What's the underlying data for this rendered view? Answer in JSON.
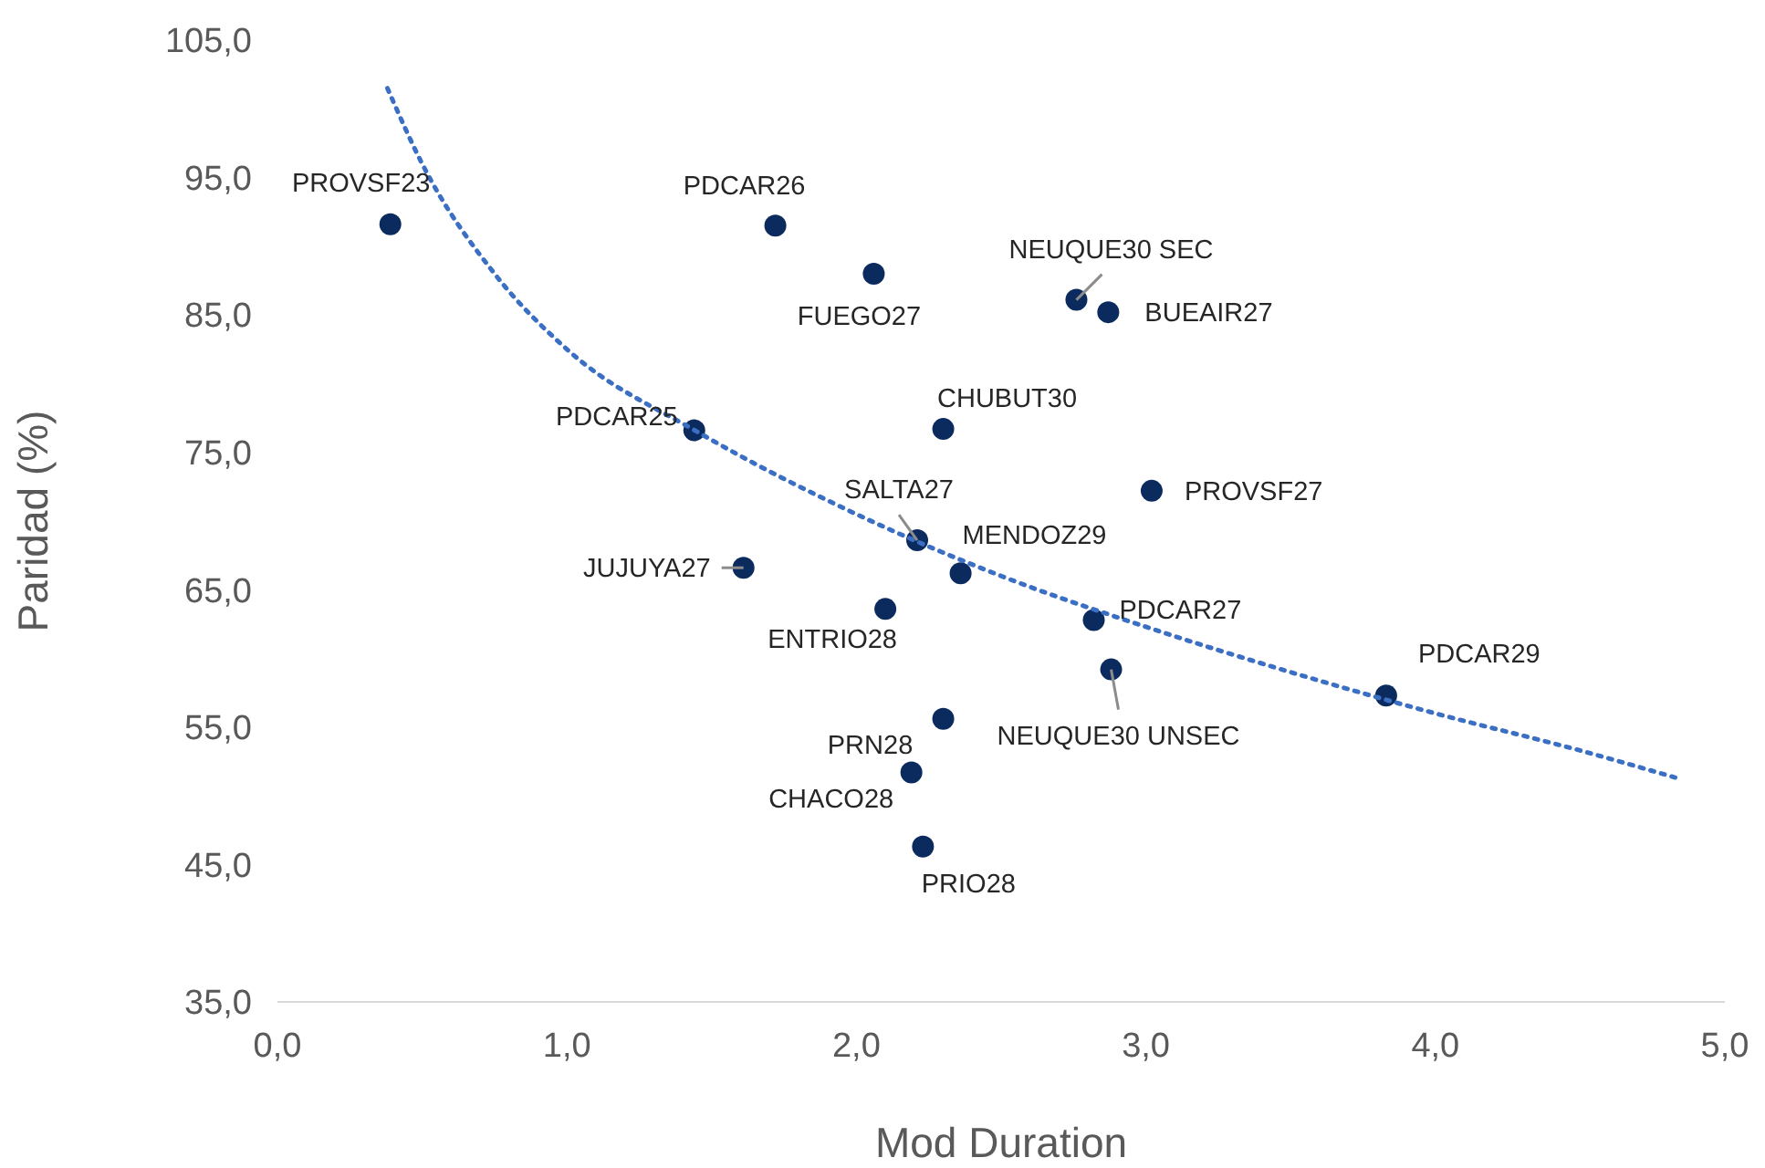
{
  "chart_data": {
    "type": "scatter",
    "xlabel": "Mod Duration",
    "ylabel": "Paridad (%)",
    "xlim": [
      0,
      5
    ],
    "ylim": [
      35,
      105
    ],
    "xticks": [
      {
        "value": 0,
        "label": "0,0"
      },
      {
        "value": 1,
        "label": "1,0"
      },
      {
        "value": 2,
        "label": "2,0"
      },
      {
        "value": 3,
        "label": "3,0"
      },
      {
        "value": 4,
        "label": "4,0"
      },
      {
        "value": 5,
        "label": "5,0"
      }
    ],
    "yticks": [
      {
        "value": 35,
        "label": "35,0"
      },
      {
        "value": 45,
        "label": "45,0"
      },
      {
        "value": 55,
        "label": "55,0"
      },
      {
        "value": 65,
        "label": "65,0"
      },
      {
        "value": 75,
        "label": "75,0"
      },
      {
        "value": 85,
        "label": "85,0"
      },
      {
        "value": 95,
        "label": "95,0"
      },
      {
        "value": 105,
        "label": "105,0"
      }
    ],
    "grid": false,
    "series": [
      {
        "color": "#0b2a5e",
        "marker": "circle",
        "x": [
          0.39,
          1.72,
          2.06,
          2.76,
          2.87,
          2.3,
          1.44,
          3.02,
          2.21,
          2.36,
          1.61,
          2.1,
          2.82,
          2.88,
          3.83,
          2.3,
          2.19,
          2.23
        ],
        "values": [
          91.6,
          91.5,
          88.0,
          86.1,
          85.2,
          76.7,
          76.6,
          72.2,
          68.6,
          66.2,
          66.6,
          63.6,
          62.8,
          59.2,
          57.3,
          55.6,
          51.7,
          46.3
        ]
      },
      {
        "type": "line",
        "color": "#3a6fc4",
        "line_style": "dotted",
        "marker": "none",
        "x": [
          0.38,
          0.5,
          0.75,
          1.0,
          1.45,
          2.0,
          2.5,
          3.0,
          3.5,
          4.0,
          4.5,
          4.85
        ],
        "values": [
          101.5,
          96,
          88,
          82.5,
          76.5,
          70.5,
          66,
          62.3,
          59,
          56,
          53.3,
          51.2
        ]
      }
    ],
    "annotations": [
      {
        "text": "PROVSF23",
        "x": 0.39,
        "y": 91.6
      },
      {
        "text": "PDCAR26",
        "x": 1.72,
        "y": 91.5
      },
      {
        "text": "FUEGO27",
        "x": 2.06,
        "y": 88.0
      },
      {
        "text": "NEUQUE30 SEC",
        "x": 2.76,
        "y": 86.1
      },
      {
        "text": "BUEAIR27",
        "x": 2.87,
        "y": 85.2
      },
      {
        "text": "CHUBUT30",
        "x": 2.3,
        "y": 76.7
      },
      {
        "text": "PDCAR25",
        "x": 1.44,
        "y": 76.6
      },
      {
        "text": "PROVSF27",
        "x": 3.02,
        "y": 72.2
      },
      {
        "text": "SALTA27",
        "x": 2.21,
        "y": 68.6
      },
      {
        "text": "MENDOZ29",
        "x": 2.36,
        "y": 66.2
      },
      {
        "text": "JUJUYA27",
        "x": 1.61,
        "y": 66.6
      },
      {
        "text": "ENTRIO28",
        "x": 2.1,
        "y": 63.6
      },
      {
        "text": "PDCAR27",
        "x": 2.82,
        "y": 62.8
      },
      {
        "text": "NEUQUE30 UNSEC",
        "x": 2.88,
        "y": 59.2
      },
      {
        "text": "PDCAR29",
        "x": 3.83,
        "y": 57.3
      },
      {
        "text": "PRN28",
        "x": 2.3,
        "y": 55.6
      },
      {
        "text": "CHACO28",
        "x": 2.19,
        "y": 51.7
      },
      {
        "text": "PRIO28",
        "x": 2.23,
        "y": 46.3
      }
    ]
  }
}
